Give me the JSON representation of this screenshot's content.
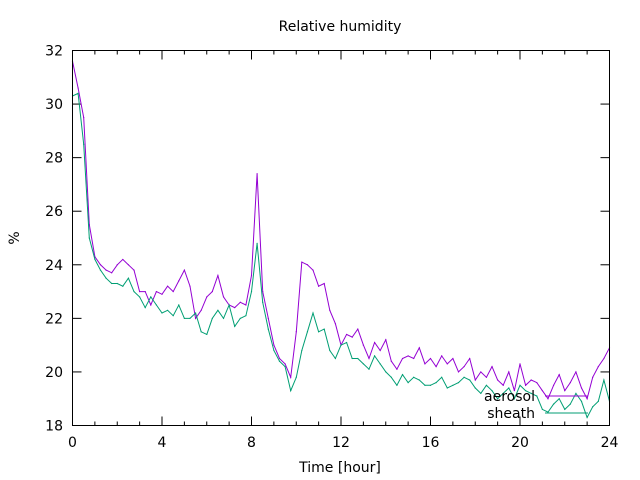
{
  "chart_data": {
    "type": "line",
    "title": "Relative humidity",
    "xlabel": "Time [hour]",
    "ylabel": "%",
    "xlim": [
      0,
      24
    ],
    "ylim": [
      18,
      32
    ],
    "xticks": [
      0,
      4,
      8,
      12,
      16,
      20,
      24
    ],
    "yticks": [
      18,
      20,
      22,
      24,
      26,
      28,
      30,
      32
    ],
    "legend_position": "bottom-right",
    "grid": false,
    "x_step": 0.25,
    "series": [
      {
        "name": "aerosol",
        "color": "#9400d3",
        "values": [
          31.6,
          30.6,
          29.5,
          25.5,
          24.3,
          24.0,
          23.8,
          23.7,
          24.0,
          24.2,
          24.0,
          23.8,
          23.0,
          23.0,
          22.5,
          23.0,
          22.9,
          23.2,
          23.0,
          23.4,
          23.8,
          23.2,
          22.0,
          22.3,
          22.8,
          23.0,
          23.6,
          22.8,
          22.5,
          22.4,
          22.6,
          22.5,
          23.6,
          27.4,
          23.0,
          22.0,
          21.0,
          20.5,
          20.3,
          19.8,
          21.5,
          24.1,
          24.0,
          23.8,
          23.2,
          23.3,
          22.3,
          21.8,
          21.0,
          21.4,
          21.3,
          21.6,
          21.0,
          20.5,
          21.1,
          20.8,
          21.2,
          20.4,
          20.1,
          20.5,
          20.6,
          20.5,
          20.9,
          20.3,
          20.5,
          20.2,
          20.6,
          20.3,
          20.5,
          20.0,
          20.2,
          20.5,
          19.7,
          20.0,
          19.8,
          20.2,
          19.7,
          19.5,
          20.0,
          19.3,
          20.3,
          19.5,
          19.7,
          19.6,
          19.3,
          19.0,
          19.5,
          19.9,
          19.3,
          19.6,
          20.0,
          19.4,
          19.0,
          19.8,
          20.2,
          20.5,
          20.9
        ]
      },
      {
        "name": "sheath",
        "color": "#009e73",
        "values": [
          30.3,
          30.4,
          28.5,
          25.0,
          24.2,
          23.8,
          23.5,
          23.3,
          23.3,
          23.2,
          23.5,
          23.0,
          22.8,
          22.4,
          22.8,
          22.5,
          22.2,
          22.3,
          22.1,
          22.5,
          22.0,
          22.0,
          22.2,
          21.5,
          21.4,
          22.0,
          22.3,
          22.0,
          22.5,
          21.7,
          22.0,
          22.1,
          23.0,
          24.8,
          22.6,
          21.6,
          20.8,
          20.4,
          20.2,
          19.3,
          19.8,
          20.8,
          21.5,
          22.2,
          21.5,
          21.6,
          20.8,
          20.5,
          21.0,
          21.1,
          20.5,
          20.5,
          20.3,
          20.1,
          20.6,
          20.3,
          20.0,
          19.8,
          19.5,
          19.9,
          19.6,
          19.8,
          19.7,
          19.5,
          19.5,
          19.6,
          19.8,
          19.4,
          19.5,
          19.6,
          19.8,
          19.7,
          19.4,
          19.2,
          19.5,
          19.3,
          19.0,
          19.2,
          19.4,
          19.0,
          19.5,
          19.3,
          19.2,
          19.1,
          18.6,
          18.5,
          18.8,
          19.0,
          18.6,
          18.8,
          19.2,
          18.9,
          18.3,
          18.7,
          18.9,
          19.7,
          18.9
        ]
      }
    ]
  }
}
